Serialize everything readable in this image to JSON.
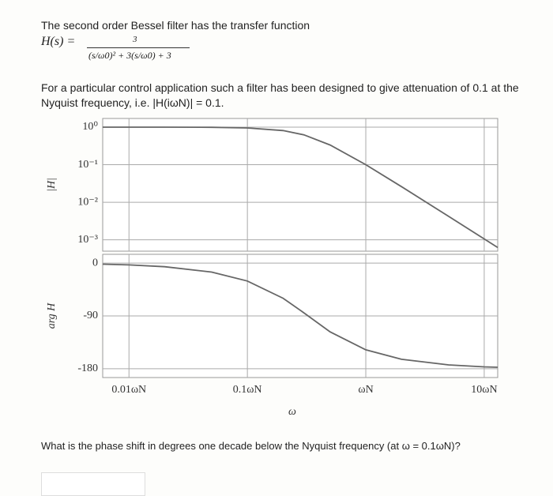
{
  "question": {
    "intro": "The second order Bessel filter has the transfer function",
    "formula_lhs": "H(s) =",
    "numerator": "3",
    "denominator": "(s/ω0)² + 3(s/ω0) + 3",
    "paragraph": "For a particular control application such a filter has been designed to give attenuation of 0.1 at the Nyquist frequency, i.e. |H(iωN)| = 0.1.",
    "final": "What is the phase shift in degrees one decade below the Nyquist frequency (at ω = 0.1ωN)?"
  },
  "chart_data": [
    {
      "type": "line",
      "ylabel": "|H|",
      "xlog": true,
      "ylog": true,
      "grid": true,
      "xlim": [
        0.006,
        13
      ],
      "ylim": [
        0.0005,
        1.7
      ],
      "yticks": [
        {
          "value": 1,
          "label": "10⁰"
        },
        {
          "value": 0.1,
          "label": "10⁻¹"
        },
        {
          "value": 0.01,
          "label": "10⁻²"
        },
        {
          "value": 0.001,
          "label": "10⁻³"
        }
      ],
      "x": [
        0.006,
        0.01,
        0.02,
        0.05,
        0.1,
        0.2,
        0.3,
        0.5,
        1,
        2,
        5,
        10,
        13
      ],
      "series": [
        {
          "color": "#666666",
          "values": [
            1,
            1,
            0.998,
            0.988,
            0.952,
            0.81,
            0.623,
            0.334,
            0.1,
            0.0261,
            0.00422,
            0.00106,
            0.000624
          ]
        }
      ]
    },
    {
      "type": "line",
      "ylabel": "arg H",
      "xlabel": "ω",
      "xlog": true,
      "grid": true,
      "xlim": [
        0.006,
        13
      ],
      "ylim": [
        -195,
        15
      ],
      "yticks": [
        0,
        -90,
        -180
      ],
      "xticks": [
        {
          "value": 0.01,
          "label": "0.01ωN"
        },
        {
          "value": 0.1,
          "label": "0.1ωN"
        },
        {
          "value": 1,
          "label": "ωN"
        },
        {
          "value": 10,
          "label": "10ωN"
        }
      ],
      "x": [
        0.006,
        0.01,
        0.02,
        0.05,
        0.1,
        0.2,
        0.3,
        0.5,
        1,
        2,
        5,
        10,
        13
      ],
      "series": [
        {
          "color": "#666666",
          "values": [
            -1.8,
            -3.05,
            -6.1,
            -15.3,
            -30.5,
            -59.8,
            -84.7,
            -117.2,
            -147.8,
            -163.9,
            -173.5,
            -176.8,
            -177.5
          ]
        }
      ]
    }
  ]
}
